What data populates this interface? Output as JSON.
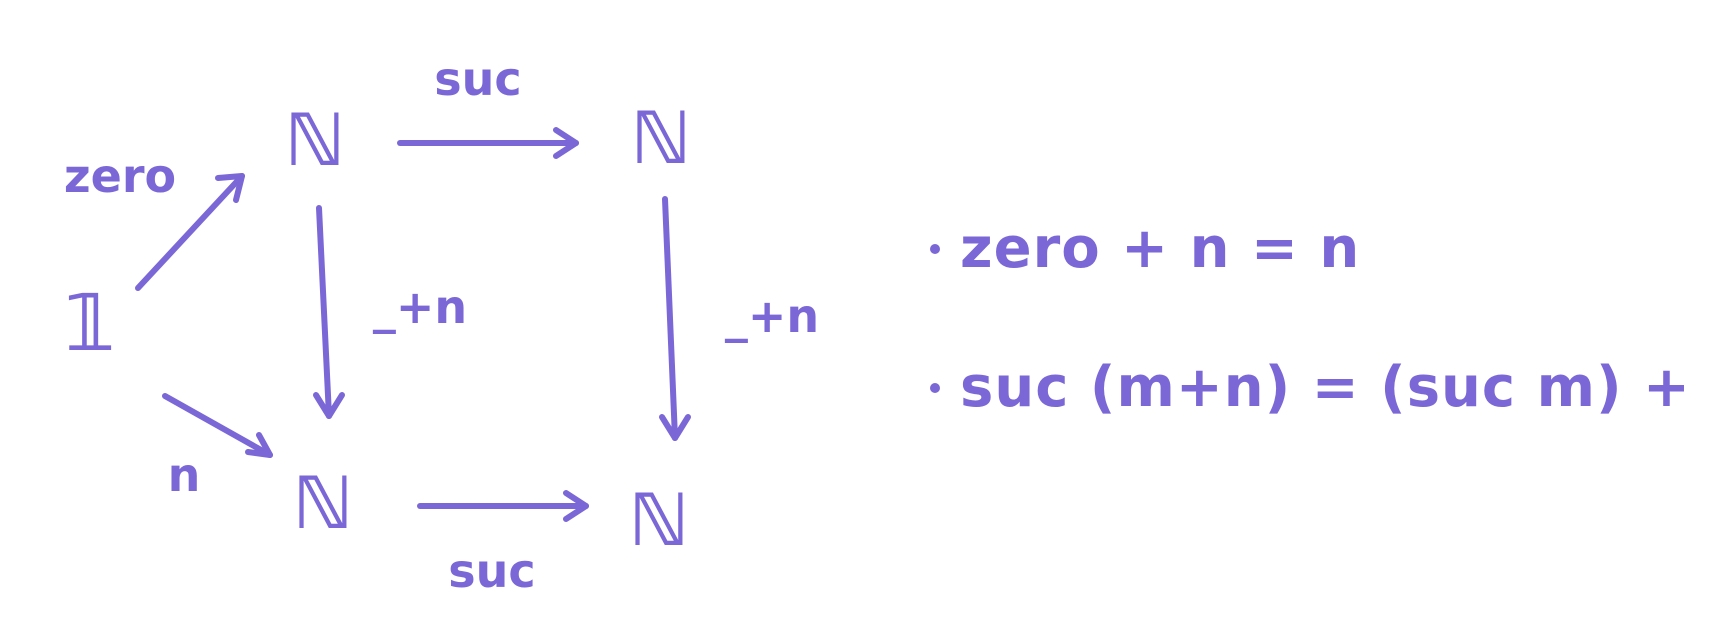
{
  "diagram": {
    "nodes": {
      "unit": "𝟙",
      "top_left": "ℕ",
      "top_right": "ℕ",
      "bottom_left": "ℕ",
      "bottom_right": "ℕ"
    },
    "labels": {
      "zero": "zero",
      "top_suc": "suc",
      "left_plus": "_+n",
      "right_plus": "_+n",
      "n": "n",
      "bottom_suc": "suc",
      "equals_mark": "="
    }
  },
  "equations": [
    "zero + n = n",
    "suc (m+n) = (suc m) + n"
  ],
  "colors": {
    "ink": "#7b67d6"
  }
}
